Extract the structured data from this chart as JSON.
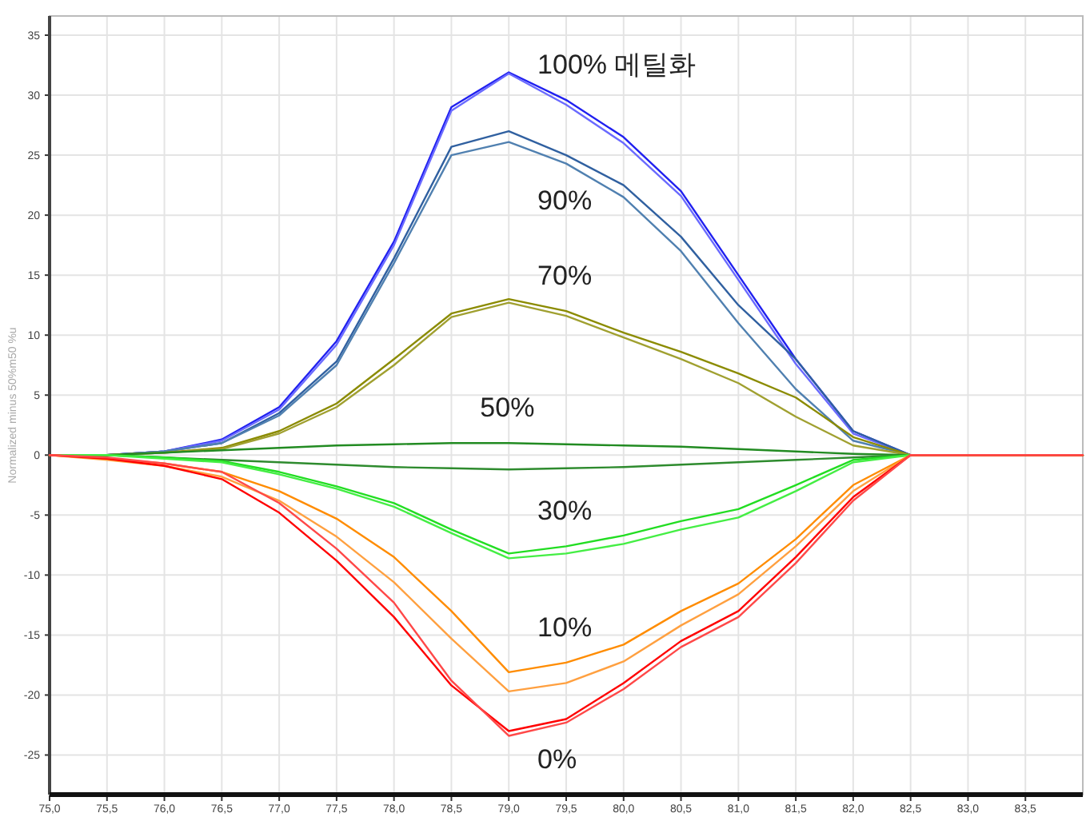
{
  "chart_data": {
    "type": "line",
    "ylabel": "Normalized minus 50%m50 %u",
    "x": [
      75,
      75.5,
      76,
      76.5,
      77,
      77.5,
      78,
      78.5,
      79,
      79.5,
      80,
      80.5,
      81,
      81.5,
      82,
      82.5,
      83,
      84
    ],
    "xlim": [
      75,
      84
    ],
    "ylim": [
      -28.3,
      36.6
    ],
    "xticks": [
      {
        "value": 75,
        "label": "75,0"
      },
      {
        "value": 75.5,
        "label": "75,5"
      },
      {
        "value": 76,
        "label": "76,0"
      },
      {
        "value": 76.5,
        "label": "76,5"
      },
      {
        "value": 77,
        "label": "77,0"
      },
      {
        "value": 77.5,
        "label": "77,5"
      },
      {
        "value": 78,
        "label": "78,0"
      },
      {
        "value": 78.5,
        "label": "78,5"
      },
      {
        "value": 79,
        "label": "79,0"
      },
      {
        "value": 79.5,
        "label": "79,5"
      },
      {
        "value": 80,
        "label": "80,0"
      },
      {
        "value": 80.5,
        "label": "80,5"
      },
      {
        "value": 81,
        "label": "81,0"
      },
      {
        "value": 81.5,
        "label": "81,5"
      },
      {
        "value": 82,
        "label": "82,0"
      },
      {
        "value": 82.5,
        "label": "82,5"
      },
      {
        "value": 83,
        "label": "83,0"
      },
      {
        "value": 83.5,
        "label": "83,5"
      }
    ],
    "yticks": [
      -25,
      -20,
      -15,
      -10,
      -5,
      0,
      5,
      10,
      15,
      20,
      25,
      30,
      35
    ],
    "grid": true,
    "marker": "none",
    "line_style": "solid",
    "series": [
      {
        "name": "100% 메틸화",
        "color": "#2020f0",
        "values": [
          0,
          0,
          0.3,
          1.3,
          4,
          9.5,
          17.8,
          29,
          31.9,
          29.6,
          26.5,
          22,
          15,
          8,
          2,
          0,
          0,
          0
        ]
      },
      {
        "color": "#6a6aff",
        "values": [
          0,
          0,
          0.3,
          1.2,
          3.8,
          9.2,
          17.5,
          28.7,
          31.8,
          29.2,
          26,
          21.6,
          14.6,
          7.6,
          1.8,
          0,
          0,
          0
        ]
      },
      {
        "color": "#3060a0",
        "values": [
          0,
          0,
          0.3,
          1,
          3.5,
          7.8,
          16.4,
          25.7,
          27,
          25,
          22.5,
          18.2,
          12.5,
          8,
          2,
          0,
          0,
          0
        ]
      },
      {
        "name": "90%",
        "color": "#5080b0",
        "values": [
          0,
          0,
          0.3,
          1,
          3.3,
          7.5,
          16,
          25,
          26.1,
          24.3,
          21.5,
          17,
          11,
          5.5,
          1.2,
          0,
          0,
          0
        ]
      },
      {
        "name": "70%",
        "color": "#8b8b00",
        "values": [
          0,
          0,
          0.2,
          0.6,
          2,
          4.3,
          8,
          11.8,
          13,
          12,
          10.2,
          8.6,
          6.8,
          4.8,
          1.5,
          0,
          0,
          0
        ]
      },
      {
        "color": "#a0a030",
        "values": [
          0,
          0,
          0.2,
          0.5,
          1.8,
          4,
          7.5,
          11.5,
          12.7,
          11.6,
          9.8,
          8,
          6,
          3.2,
          0.8,
          0,
          0,
          0
        ]
      },
      {
        "name": "50%",
        "color": "#228b22",
        "values": [
          0,
          0,
          0.2,
          0.4,
          0.6,
          0.8,
          0.9,
          1,
          1,
          0.9,
          0.8,
          0.7,
          0.5,
          0.3,
          0.1,
          0,
          0,
          0
        ]
      },
      {
        "color": "#2e8b2e",
        "values": [
          0,
          0,
          -0.2,
          -0.4,
          -0.6,
          -0.8,
          -1,
          -1.1,
          -1.2,
          -1.1,
          -1,
          -0.8,
          -0.6,
          -0.4,
          -0.2,
          0,
          0,
          0
        ]
      },
      {
        "name": "30%",
        "color": "#22dd22",
        "values": [
          0,
          0,
          -0.2,
          -0.5,
          -1.4,
          -2.6,
          -4,
          -6.2,
          -8.2,
          -7.6,
          -6.7,
          -5.5,
          -4.5,
          -2.5,
          -0.4,
          0,
          0,
          0
        ]
      },
      {
        "color": "#44ee44",
        "values": [
          0,
          0,
          -0.3,
          -0.6,
          -1.6,
          -2.8,
          -4.3,
          -6.5,
          -8.6,
          -8.2,
          -7.4,
          -6.2,
          -5.2,
          -3,
          -0.6,
          0,
          0,
          0
        ]
      },
      {
        "name": "10%",
        "color": "#ff8c00",
        "values": [
          0,
          -0.3,
          -0.7,
          -1.4,
          -3,
          -5.3,
          -8.5,
          -13,
          -18.1,
          -17.3,
          -15.8,
          -13,
          -10.7,
          -7,
          -2.5,
          0,
          0,
          0
        ]
      },
      {
        "color": "#ffa040",
        "values": [
          0,
          -0.4,
          -0.9,
          -1.8,
          -3.8,
          -6.8,
          -10.6,
          -15.3,
          -19.7,
          -19,
          -17.2,
          -14.2,
          -11.6,
          -7.6,
          -3,
          0,
          0,
          0
        ]
      },
      {
        "color": "#ff0000",
        "values": [
          0,
          -0.3,
          -0.9,
          -2,
          -4.8,
          -8.8,
          -13.5,
          -19.2,
          -23,
          -22,
          -19,
          -15.5,
          -13,
          -8.5,
          -3.5,
          0,
          0,
          0
        ]
      },
      {
        "name": "0%",
        "color": "#ff4848",
        "values": [
          0,
          -0.2,
          -0.7,
          -1.4,
          -4,
          -7.8,
          -12.3,
          -18.8,
          -23.4,
          -22.3,
          -19.5,
          -16,
          -13.5,
          -9,
          -3.8,
          0,
          0,
          0
        ]
      }
    ]
  }
}
